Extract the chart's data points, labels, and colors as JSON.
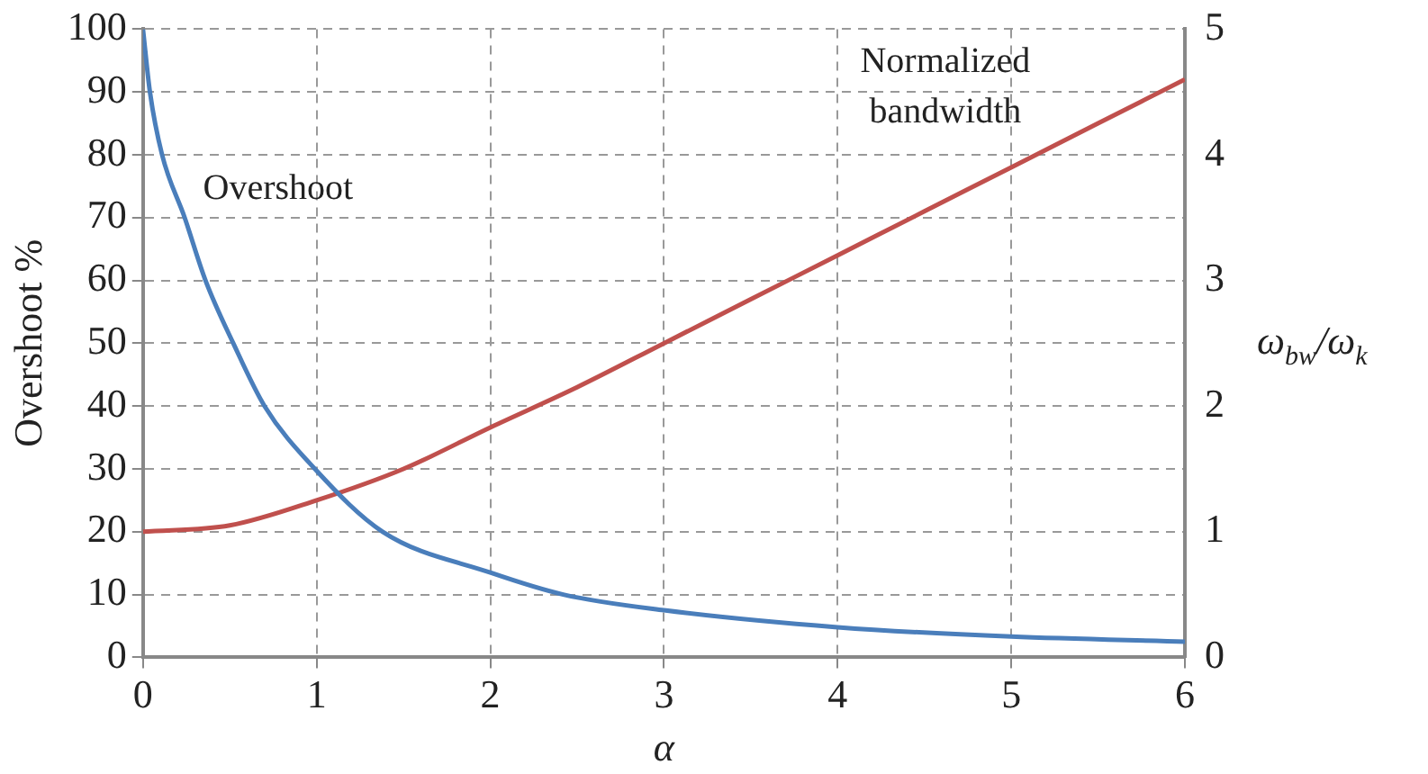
{
  "chart_data": {
    "type": "line",
    "xlabel": "α",
    "ylabel": "Overshoot %",
    "y2label": "ω$_{bw}$/ω$_{k}$",
    "xlim": [
      0,
      6
    ],
    "xticks": [
      0,
      1,
      2,
      3,
      4,
      5,
      6
    ],
    "ylim": [
      0,
      100
    ],
    "yticks": [
      0,
      10,
      20,
      30,
      40,
      50,
      60,
      70,
      80,
      90,
      100
    ],
    "y2lim": [
      0,
      5
    ],
    "y2ticks": [
      0,
      1,
      2,
      3,
      4,
      5
    ],
    "grid": true,
    "legend": false,
    "line_style": "solid",
    "marker": "none",
    "series": [
      {
        "name": "Overshoot",
        "color": "#4a7ebb",
        "x": [
          0,
          0.04,
          0.11,
          0.24,
          0.36,
          0.52,
          0.7,
          0.99,
          1.38,
          2,
          2.42,
          3,
          4,
          5,
          6
        ],
        "values": [
          100,
          90,
          80,
          70,
          60,
          50,
          40,
          30,
          20,
          13.5,
          10,
          7.5,
          4.8,
          3.3,
          2.5
        ]
      },
      {
        "name": "Normalized bandwidth",
        "color": "#c0504d",
        "axis": "y2",
        "x": [
          0,
          0.5,
          1,
          1.5,
          2,
          2.5,
          3,
          3.5,
          4,
          4.5,
          5,
          5.5,
          6
        ],
        "values": [
          1,
          1.05,
          1.25,
          1.5,
          1.83,
          2.15,
          2.5,
          2.85,
          3.2,
          3.55,
          3.9,
          4.25,
          4.6
        ]
      }
    ]
  }
}
